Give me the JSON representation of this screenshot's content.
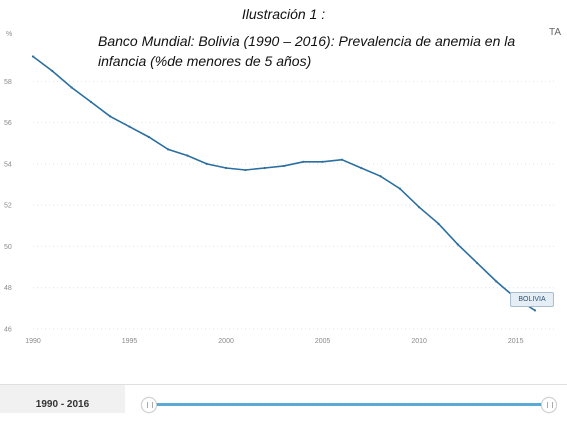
{
  "caption": {
    "title": "Ilustración 1 :",
    "subtitle": "Banco Mundial: Bolivia (1990 – 2016): Prevalencia de anemia en la infancia (%de menores de 5 años)"
  },
  "corner_tag": "TA",
  "range": {
    "label": "1990 - 2016"
  },
  "colors": {
    "series": "#2a6fa0",
    "track": "#5aaad8"
  },
  "chart_data": {
    "type": "line",
    "title": "",
    "xlabel": "",
    "ylabel": "",
    "xlim": [
      1990,
      2016
    ],
    "ylim": [
      46,
      60
    ],
    "x_ticks": [
      1990,
      1995,
      2000,
      2005,
      2010,
      2015
    ],
    "y_ticks": [
      46,
      48,
      50,
      52,
      54,
      56,
      58
    ],
    "y_axis_unit": "%",
    "grid": true,
    "x": [
      1990,
      1991,
      1992,
      1993,
      1994,
      1995,
      1996,
      1997,
      1998,
      1999,
      2000,
      2001,
      2002,
      2003,
      2004,
      2005,
      2006,
      2007,
      2008,
      2009,
      2010,
      2011,
      2012,
      2013,
      2014,
      2015,
      2016
    ],
    "series": [
      {
        "name": "BOLIVIA",
        "values": [
          59.2,
          58.5,
          57.7,
          57.0,
          56.3,
          55.8,
          55.3,
          54.7,
          54.4,
          54.0,
          53.8,
          53.7,
          53.8,
          53.9,
          54.1,
          54.1,
          54.2,
          53.8,
          53.4,
          52.8,
          51.9,
          51.1,
          50.1,
          49.2,
          48.3,
          47.5,
          46.9
        ]
      }
    ]
  }
}
